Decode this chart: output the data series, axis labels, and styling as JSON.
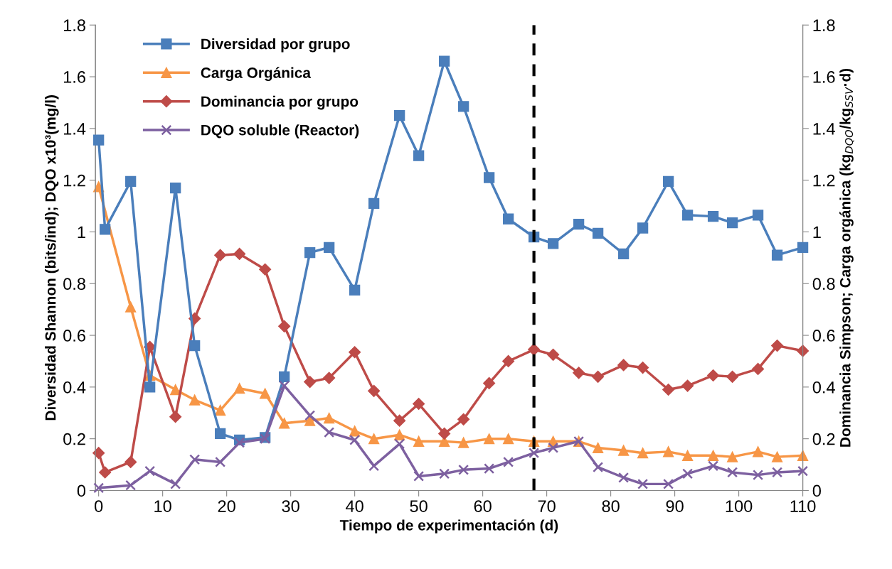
{
  "chart_data": {
    "type": "line",
    "xlabel": "Tiempo de experimentación (d)",
    "ylabel": "Diversidad Shannon (bits/ind); DQO x10³(mg/l)",
    "y2label": "Dominancia Simpson; Carga orgánica (kg$_{DQO}$/kg$_{SSV}$·d)",
    "x": [
      0,
      1,
      5,
      8,
      12,
      15,
      19,
      22,
      26,
      29,
      33,
      36,
      40,
      43,
      47,
      50,
      54,
      57,
      61,
      64,
      68,
      71,
      75,
      78,
      82,
      85,
      89,
      92,
      96,
      99,
      103,
      106,
      110
    ],
    "series": [
      {
        "name": "Diversidad por grupo",
        "color": "#4a7ebb",
        "marker": "square",
        "values": [
          1.355,
          1.01,
          1.195,
          0.4,
          1.17,
          0.56,
          0.22,
          0.195,
          0.205,
          0.44,
          0.92,
          0.94,
          0.775,
          1.11,
          1.45,
          1.295,
          1.66,
          1.485,
          1.21,
          1.05,
          0.98,
          0.955,
          1.03,
          0.995,
          0.915,
          1.015,
          1.195,
          1.065,
          1.06,
          1.035,
          1.065,
          0.91,
          0.94
        ]
      },
      {
        "name": "Carga Orgánica",
        "color": "#f79646",
        "marker": "triangle",
        "axis": "y2",
        "x": [
          0,
          5,
          8,
          12,
          15,
          19,
          22,
          26,
          29,
          33,
          36,
          40,
          43,
          47,
          50,
          54,
          57,
          61,
          64,
          68,
          71,
          75,
          78,
          82,
          85,
          89,
          92,
          96,
          99,
          103,
          106,
          110
        ],
        "values": [
          1.175,
          0.71,
          0.445,
          0.39,
          0.35,
          0.31,
          0.395,
          0.375,
          0.26,
          0.27,
          0.28,
          0.23,
          0.2,
          0.215,
          0.19,
          0.19,
          0.185,
          0.2,
          0.2,
          0.19,
          0.19,
          0.19,
          0.165,
          0.155,
          0.145,
          0.15,
          0.135,
          0.135,
          0.13,
          0.15,
          0.13,
          0.135
        ]
      },
      {
        "name": "Dominancia por grupo",
        "color": "#be4b48",
        "marker": "diamond",
        "axis": "y2",
        "values": [
          0.145,
          0.07,
          0.11,
          0.555,
          0.285,
          0.665,
          0.91,
          0.915,
          0.855,
          0.635,
          0.42,
          0.435,
          0.535,
          0.385,
          0.27,
          0.335,
          0.22,
          0.275,
          0.415,
          0.5,
          0.545,
          0.525,
          0.455,
          0.44,
          0.485,
          0.475,
          0.39,
          0.405,
          0.445,
          0.44,
          0.47,
          0.56,
          0.54
        ]
      },
      {
        "name": "DQO soluble (Reactor)",
        "color": "#7d60a0",
        "marker": "cross",
        "x": [
          0,
          5,
          8,
          12,
          15,
          19,
          22,
          26,
          29,
          33,
          36,
          40,
          43,
          47,
          50,
          54,
          57,
          61,
          64,
          68,
          71,
          75,
          78,
          82,
          85,
          89,
          92,
          96,
          99,
          103,
          106,
          110
        ],
        "values": [
          0.01,
          0.02,
          0.075,
          0.025,
          0.12,
          0.11,
          0.185,
          0.2,
          0.405,
          0.29,
          0.225,
          0.195,
          0.095,
          0.18,
          0.055,
          0.065,
          0.08,
          0.085,
          0.11,
          0.145,
          0.165,
          0.19,
          0.09,
          0.05,
          0.025,
          0.025,
          0.065,
          0.095,
          0.07,
          0.06,
          0.07,
          0.075
        ]
      }
    ],
    "xlim": [
      -0.5,
      110
    ],
    "xticks": [
      0,
      10,
      20,
      30,
      40,
      50,
      60,
      70,
      80,
      90,
      100,
      110
    ],
    "ylim": [
      0,
      1.8
    ],
    "yticks": [
      0,
      0.2,
      0.4,
      0.6,
      0.8,
      1,
      1.2,
      1.4,
      1.6,
      1.8
    ],
    "y2lim": [
      0,
      1.8
    ],
    "y2ticks": [
      0,
      0.2,
      0.4,
      0.6,
      0.8,
      1,
      1.2,
      1.4,
      1.6,
      1.8
    ],
    "ref_lines": [
      {
        "axis": "x",
        "value": 68,
        "color": "#000000",
        "line_style": "dashed"
      }
    ],
    "legend": "top left",
    "grid": false,
    "line_style": "solid"
  }
}
